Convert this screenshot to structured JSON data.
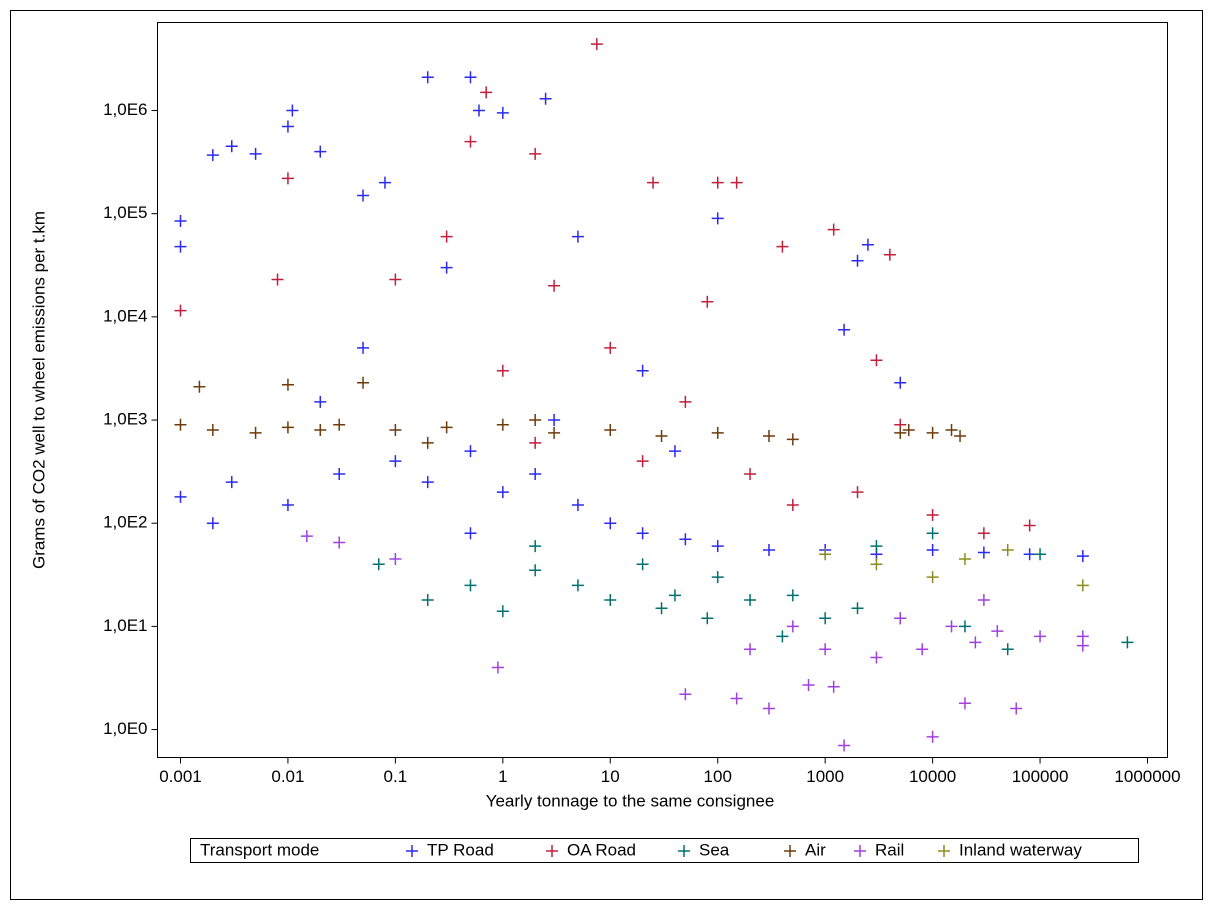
{
  "chart_data": {
    "type": "scatter",
    "xlabel": "Yearly tonnage to the same consignee",
    "ylabel": "Grams of CO2 well to wheel emissions per t.km",
    "legend_title": "Transport mode",
    "legend_position": "bottom",
    "xscale": "log",
    "yscale": "log",
    "xlim": [
      0.000611,
      1535000
    ],
    "ylim": [
      0.536,
      7130000
    ],
    "xticks": [
      0.001,
      0.01,
      0.1,
      1,
      10,
      100,
      1000,
      10000,
      100000,
      1000000
    ],
    "yticks": [
      {
        "value": 1000000,
        "label": "1,0E6"
      },
      {
        "value": 100000,
        "label": "1,0E5"
      },
      {
        "value": 10000,
        "label": "1,0E4"
      },
      {
        "value": 1000,
        "label": "1,0E3"
      },
      {
        "value": 100,
        "label": "1,0E2"
      },
      {
        "value": 10,
        "label": "1,0E1"
      },
      {
        "value": 1,
        "label": "1,0E0"
      }
    ],
    "series": [
      {
        "name": "TP Road",
        "color": "#2b2bf0",
        "x": [
          0.001,
          0.001,
          0.001,
          0.002,
          0.003,
          0.005,
          0.01,
          0.011,
          0.02,
          0.05,
          0.08,
          0.2,
          0.5,
          0.6,
          1,
          2.5,
          0.003,
          0.01,
          0.03,
          0.1,
          0.2,
          0.5,
          1,
          2,
          5,
          10,
          20,
          50,
          100,
          300,
          1000,
          3000,
          10000,
          30000,
          80000,
          250000,
          100,
          2000,
          2500,
          1500,
          5000,
          0.05,
          0.3,
          5,
          20,
          0.002,
          0.02,
          0.5,
          3,
          40
        ],
        "values": [
          85000,
          48000,
          180,
          370000,
          450000,
          380000,
          700000,
          1000000,
          400000,
          150000,
          200000,
          2100000,
          2100000,
          1000000,
          950000,
          1300000,
          250,
          150,
          300,
          400,
          250,
          500,
          200,
          300,
          150,
          100,
          80,
          70,
          60,
          55,
          55,
          50,
          55,
          52,
          50,
          48,
          90000,
          35000,
          50000,
          7500,
          2300,
          5000,
          30000,
          60000,
          3000,
          100,
          1500,
          80,
          1000,
          500
        ]
      },
      {
        "name": "OA Road",
        "color": "#c0203c",
        "x": [
          0.001,
          0.008,
          0.01,
          0.5,
          0.7,
          2,
          7.5,
          25,
          100,
          150,
          1200,
          4000,
          400,
          80,
          10,
          3,
          1,
          0.3,
          0.1,
          2,
          20,
          50,
          200,
          500,
          2000,
          5000,
          10000,
          30000,
          80000,
          3000
        ],
        "values": [
          11500,
          23000,
          220000,
          500000,
          1500000,
          380000,
          4400000,
          200000,
          200000,
          200000,
          70000,
          40000,
          48000,
          14000,
          5000,
          20000,
          3000,
          60000,
          23000,
          600,
          400,
          1500,
          300,
          150,
          200,
          900,
          120,
          80,
          95,
          3800
        ]
      },
      {
        "name": "Sea",
        "color": "#007070",
        "x": [
          0.07,
          0.2,
          0.5,
          1,
          2,
          5,
          10,
          20,
          30,
          80,
          100,
          200,
          400,
          500,
          1000,
          2000,
          3000,
          5000,
          10000,
          20000,
          50000,
          100000,
          650000,
          2,
          40
        ],
        "values": [
          40,
          18,
          25,
          14,
          60,
          25,
          18,
          40,
          15,
          12,
          30,
          18,
          8,
          20,
          12,
          15,
          60,
          12,
          80,
          10,
          6,
          50,
          7,
          35,
          20
        ]
      },
      {
        "name": "Air",
        "color": "#6e3c0c",
        "x": [
          0.001,
          0.0015,
          0.002,
          0.005,
          0.01,
          0.01,
          0.03,
          0.05,
          0.1,
          0.3,
          1,
          3,
          10,
          30,
          100,
          300,
          500,
          5000,
          6000,
          10000,
          15000,
          18000,
          0.02,
          0.2,
          2
        ],
        "values": [
          900,
          2100,
          800,
          750,
          2200,
          850,
          900,
          2300,
          800,
          850,
          900,
          750,
          800,
          700,
          750,
          700,
          650,
          750,
          800,
          750,
          800,
          700,
          800,
          600,
          1000
        ]
      },
      {
        "name": "Rail",
        "color": "#a040e0",
        "x": [
          0.015,
          0.03,
          0.1,
          0.9,
          50,
          150,
          300,
          1500,
          10000,
          20000,
          60000,
          700,
          1200,
          3000,
          5000,
          8000,
          15000,
          25000,
          40000,
          100000,
          250000,
          250000,
          500,
          200,
          1000,
          30000
        ],
        "values": [
          75,
          65,
          45,
          4,
          2.2,
          2,
          1.6,
          0.7,
          0.85,
          1.8,
          1.6,
          2.7,
          2.6,
          5,
          12,
          6,
          10,
          7,
          9,
          8,
          8,
          6.5,
          10,
          6,
          6,
          18
        ]
      },
      {
        "name": "Inland waterway",
        "color": "#8c8c1e",
        "x": [
          1000,
          10000,
          3000,
          50000,
          20000,
          250000
        ],
        "values": [
          50,
          30,
          40,
          55,
          45,
          25
        ]
      }
    ]
  }
}
